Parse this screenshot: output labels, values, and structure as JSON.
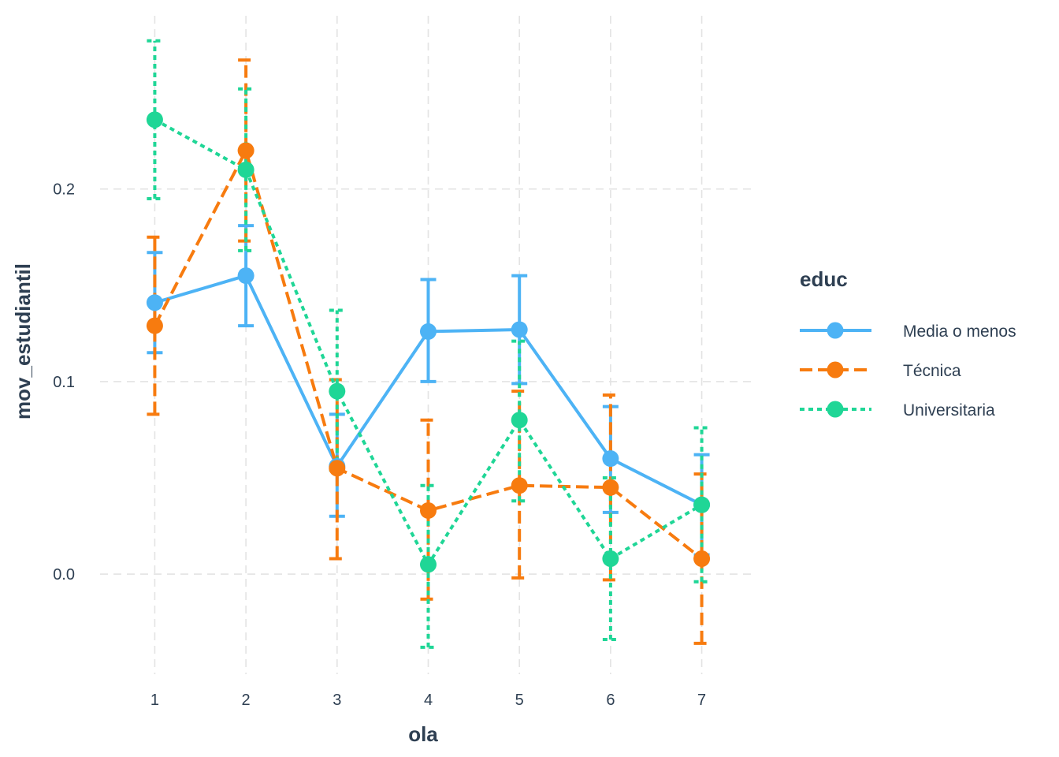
{
  "chart_data": {
    "type": "line",
    "xlabel": "ola",
    "ylabel": "mov_estudiantil",
    "x": [
      1,
      2,
      3,
      4,
      5,
      6,
      7
    ],
    "x_tick_labels": [
      "1",
      "2",
      "3",
      "4",
      "5",
      "6",
      "7"
    ],
    "y_ticks": [
      0.0,
      0.1,
      0.2
    ],
    "y_tick_labels": [
      "0.0",
      "0.1",
      "0.2"
    ],
    "xlim": [
      0.4,
      7.6
    ],
    "ylim": [
      -0.052,
      0.29
    ],
    "grid": true,
    "legend": {
      "title": "educ",
      "position": "right"
    },
    "series": [
      {
        "name": "Media o menos",
        "color": "#4db3f5",
        "linetype": "solid",
        "values": [
          0.141,
          0.155,
          0.056,
          0.126,
          0.127,
          0.06,
          0.036
        ],
        "lower": [
          0.115,
          0.129,
          0.03,
          0.1,
          0.099,
          0.032,
          0.01
        ],
        "upper": [
          0.167,
          0.181,
          0.083,
          0.153,
          0.155,
          0.087,
          0.062
        ]
      },
      {
        "name": "Técnica",
        "color": "#f77b0f",
        "linetype": "dashed",
        "values": [
          0.129,
          0.22,
          0.055,
          0.033,
          0.046,
          0.045,
          0.008
        ],
        "lower": [
          0.083,
          0.173,
          0.008,
          -0.013,
          -0.002,
          -0.003,
          -0.036
        ],
        "upper": [
          0.175,
          0.267,
          0.101,
          0.08,
          0.095,
          0.093,
          0.052
        ]
      },
      {
        "name": "Universitaria",
        "color": "#1fd696",
        "linetype": "dotted",
        "values": [
          0.236,
          0.21,
          0.095,
          0.005,
          0.08,
          0.008,
          0.036
        ],
        "lower": [
          0.195,
          0.168,
          0.054,
          -0.038,
          0.038,
          -0.034,
          -0.004
        ],
        "upper": [
          0.277,
          0.252,
          0.137,
          0.046,
          0.121,
          0.05,
          0.076
        ]
      }
    ]
  }
}
